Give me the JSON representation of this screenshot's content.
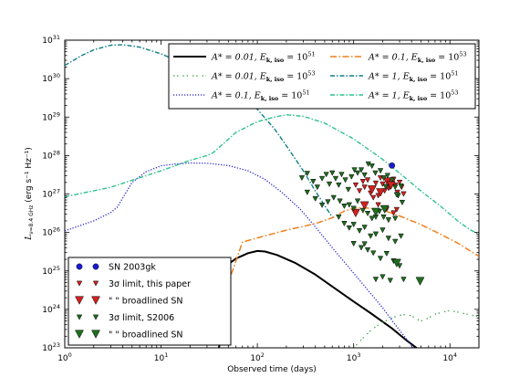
{
  "chart_data": {
    "type": "line",
    "xlabel": "Observed time (days)",
    "ylabel_main": "L",
    "ylabel_sub": "ν=8.4 GHz",
    "ylabel_unit": " (erg s⁻¹ Hz⁻¹)",
    "xscale": "log",
    "yscale": "log",
    "xlim": [
      1,
      20000
    ],
    "ylim": [
      1e+23,
      1e+31
    ],
    "x_ticks": [
      {
        "value": 1,
        "base": "10",
        "exp": "0"
      },
      {
        "value": 10,
        "base": "10",
        "exp": "1"
      },
      {
        "value": 100,
        "base": "10",
        "exp": "2"
      },
      {
        "value": 1000,
        "base": "10",
        "exp": "3"
      },
      {
        "value": 10000,
        "base": "10",
        "exp": "4"
      }
    ],
    "y_ticks": [
      {
        "value": 1e+23,
        "base": "10",
        "exp": "23"
      },
      {
        "value": 1e+24,
        "base": "10",
        "exp": "24"
      },
      {
        "value": 1e+25,
        "base": "10",
        "exp": "25"
      },
      {
        "value": 1e+26,
        "base": "10",
        "exp": "26"
      },
      {
        "value": 1e+27,
        "base": "10",
        "exp": "27"
      },
      {
        "value": 1e+28,
        "base": "10",
        "exp": "28"
      },
      {
        "value": 1e+29,
        "base": "10",
        "exp": "29"
      },
      {
        "value": 1e+30,
        "base": "10",
        "exp": "30"
      },
      {
        "value": 1e+31,
        "base": "10",
        "exp": "31"
      }
    ],
    "series": [
      {
        "name": "A* = 0.01, Ek,iso = 10^51",
        "legend_a": "A",
        "legend_astar": "* = 0.01,  E",
        "legend_ksub": "k, iso",
        "legend_eq": " = 10",
        "legend_exp": "51",
        "color": "#000000",
        "dash": "",
        "width": 2.0,
        "points": [
          [
            40,
            1e+23
          ],
          [
            50,
            1.5e+25
          ],
          [
            60,
            2.1e+25
          ],
          [
            80,
            2.9e+25
          ],
          [
            100,
            3.3e+25
          ],
          [
            120,
            3.2e+25
          ],
          [
            160,
            2.6e+25
          ],
          [
            250,
            1.6e+25
          ],
          [
            400,
            8e+24
          ],
          [
            700,
            3e+24
          ],
          [
            1000,
            1.6e+24
          ],
          [
            1500,
            8e+23
          ],
          [
            2500,
            3.2e+23
          ],
          [
            3500,
            1.6e+23
          ],
          [
            4500,
            1e+23
          ]
        ]
      },
      {
        "name": "A* = 0.01, Ek,iso = 10^53",
        "legend_a": "A",
        "legend_astar": "* = 0.01,  E",
        "legend_ksub": "k, iso",
        "legend_eq": " = 10",
        "legend_exp": "53",
        "color": "#3aa346",
        "dash": "1.5,2.5,1.5,5",
        "width": 1.2,
        "points": [
          [
            1000,
            1e+23
          ],
          [
            1300,
            2e+23
          ],
          [
            1600,
            3.2e+23
          ],
          [
            2000,
            4.6e+23
          ],
          [
            2500,
            6e+23
          ],
          [
            3000,
            7e+23
          ],
          [
            3500,
            7.4e+23
          ],
          [
            4000,
            6.8e+23
          ],
          [
            4500,
            5.5e+23
          ],
          [
            5200,
            5e+23
          ],
          [
            6000,
            6e+23
          ],
          [
            7000,
            7.5e+23
          ],
          [
            8500,
            8.5e+23
          ],
          [
            10000,
            9.3e+23
          ],
          [
            12000,
            8.5e+23
          ],
          [
            15000,
            7.5e+23
          ],
          [
            20000,
            6.5e+23
          ]
        ]
      },
      {
        "name": "A* = 0.1, Ek,iso = 10^51",
        "legend_a": "A",
        "legend_astar": "* = 0.1,  E",
        "legend_ksub": "k, iso",
        "legend_eq": " = 10",
        "legend_exp": "51",
        "color": "#2222cc",
        "dash": "1.2,1.8",
        "width": 1.3,
        "points": [
          [
            1,
            1.1e+26
          ],
          [
            2,
            2e+26
          ],
          [
            3,
            3.3e+26
          ],
          [
            3.5,
            4.5e+26
          ],
          [
            5,
            2e+27
          ],
          [
            7,
            3.8e+27
          ],
          [
            10,
            5.4e+27
          ],
          [
            14,
            6e+27
          ],
          [
            20,
            6.4e+27
          ],
          [
            30,
            6.3e+27
          ],
          [
            50,
            5.5e+27
          ],
          [
            80,
            4e+27
          ],
          [
            120,
            2.4e+27
          ],
          [
            180,
            1.1e+27
          ],
          [
            280,
            4e+26
          ],
          [
            400,
            1.4e+26
          ],
          [
            600,
            4e+25
          ],
          [
            900,
            1.2e+25
          ],
          [
            1400,
            3.2e+24
          ],
          [
            2000,
            1.1e+24
          ],
          [
            2700,
            4e+23
          ],
          [
            3600,
            1.6e+23
          ],
          [
            4200,
            1e+23
          ]
        ]
      },
      {
        "name": "A* = 0.1, Ek,iso = 10^53",
        "legend_a": "A",
        "legend_astar": "* = 0.1,  E",
        "legend_ksub": "k, iso",
        "legend_eq": " = 10",
        "legend_exp": "53",
        "color": "#f07f1b",
        "dash": "7,2.5,1.5,2.5",
        "width": 1.5,
        "points": [
          [
            40,
            1e+24
          ],
          [
            70,
            5.6e+25
          ],
          [
            100,
            7.2e+25
          ],
          [
            200,
            1.15e+26
          ],
          [
            400,
            1.7e+26
          ],
          [
            600,
            2.4e+26
          ],
          [
            800,
            3.6e+26
          ],
          [
            1000,
            4.3e+26
          ],
          [
            1300,
            4.4e+26
          ],
          [
            2000,
            3.8e+26
          ],
          [
            3000,
            2.7e+26
          ],
          [
            5000,
            1.6e+26
          ],
          [
            8000,
            9e+25
          ],
          [
            12000,
            5.3e+25
          ],
          [
            16000,
            3.4e+25
          ],
          [
            20000,
            2.4e+25
          ]
        ]
      },
      {
        "name": "A* = 1, Ek,iso = 10^51",
        "legend_a": "A",
        "legend_astar": "* = 1,  E",
        "legend_ksub": "k, iso",
        "legend_eq": " = 10",
        "legend_exp": "51",
        "color": "#0f7f86",
        "dash": "5,2,1.5,2",
        "width": 1.4,
        "points": [
          [
            1,
            2.2e+30
          ],
          [
            1.5,
            4e+30
          ],
          [
            2,
            5.6e+30
          ],
          [
            3,
            7.4e+30
          ],
          [
            4,
            7.6e+30
          ],
          [
            6,
            6.6e+30
          ],
          [
            10,
            4.4e+30
          ],
          [
            20,
            2.1e+30
          ],
          [
            40,
            8e+29
          ],
          [
            70,
            3.2e+29
          ],
          [
            100,
            1.6e+29
          ],
          [
            150,
            5e+28
          ],
          [
            200,
            1.8e+28
          ],
          [
            300,
            4e+27
          ],
          [
            400,
            1.2e+27
          ],
          [
            500,
            5e+26
          ],
          [
            600,
            2.5e+26
          ]
        ]
      },
      {
        "name": "A* = 1, Ek,iso = 10^53",
        "legend_a": "A",
        "legend_astar": "* = 1,  E",
        "legend_ksub": "k, iso",
        "legend_eq": " = 10",
        "legend_exp": "53",
        "color": "#2ec28a",
        "dash": "5,2,1.5,2",
        "width": 1.4,
        "points": [
          [
            1,
            8.5e+26
          ],
          [
            3,
            1.5e+27
          ],
          [
            10,
            4e+27
          ],
          [
            20,
            7.5e+27
          ],
          [
            30,
            1e+28
          ],
          [
            35,
            1.2e+28
          ],
          [
            45,
            2.1e+28
          ],
          [
            60,
            4e+28
          ],
          [
            100,
            7.6e+28
          ],
          [
            150,
            1e+29
          ],
          [
            200,
            1.15e+29
          ],
          [
            300,
            1.05e+29
          ],
          [
            500,
            7e+28
          ],
          [
            1000,
            2.7e+28
          ],
          [
            2000,
            8e+27
          ],
          [
            3000,
            3.5e+27
          ],
          [
            5000,
            1.2e+27
          ],
          [
            8000,
            4.8e+26
          ],
          [
            12000,
            2e+26
          ],
          [
            16000,
            1.2e+26
          ],
          [
            20000,
            9e+25
          ]
        ]
      }
    ],
    "scatter": [
      {
        "name": "SN 2003gk",
        "legend_label": "SN 2003gk",
        "marker": "circle",
        "color": "#1a1acc",
        "points": [
          [
            2500,
            5.5e+27
          ]
        ]
      },
      {
        "name": "3σ limit, this paper",
        "legend_label": "3σ limit, this paper",
        "marker": "tri-small",
        "color": "#d42020",
        "points": [
          [
            1050,
            1.7e+27
          ],
          [
            1150,
            1.2e+27
          ],
          [
            1250,
            2.1e+27
          ],
          [
            1300,
            1.5e+27
          ],
          [
            1400,
            2.3e+27
          ],
          [
            1500,
            1.05e+27
          ],
          [
            1600,
            1.4e+27
          ],
          [
            1700,
            1.9e+27
          ],
          [
            1800,
            9e+26
          ],
          [
            1900,
            2.6e+27
          ],
          [
            2000,
            1.8e+27
          ],
          [
            2100,
            1.2e+27
          ],
          [
            2200,
            2.2e+27
          ],
          [
            2300,
            1.4e+27
          ],
          [
            2400,
            1.5e+27
          ],
          [
            2600,
            2.4e+27
          ],
          [
            2700,
            1.7e+27
          ],
          [
            2850,
            1.1e+27
          ],
          [
            3000,
            2e+27
          ],
          [
            3150,
            1.5e+27
          ],
          [
            3300,
            1e+27
          ],
          [
            2200,
            4e+26
          ],
          [
            2600,
            3.2e+26
          ],
          [
            2800,
            3.9e+26
          ],
          [
            1800,
            5.2e+26
          ],
          [
            1600,
            8e+26
          ]
        ]
      },
      {
        "name": "\" \"broadlined SN",
        "legend_quotes": "\"   \"",
        "legend_label": "broadlined SN",
        "marker": "tri-big",
        "color": "#d42020",
        "points": [
          [
            1900,
            1.1e+27
          ],
          [
            2250,
            2.1e+27
          ],
          [
            2450,
            1.7e+27
          ],
          [
            1300,
            5e+26
          ],
          [
            1050,
            3.2e+26
          ],
          [
            1550,
            1.3e+27
          ]
        ]
      },
      {
        "name": "3σ limit, S2006",
        "legend_label": "3σ limit, S2006",
        "marker": "tri-small",
        "color": "#1f6e1f",
        "points": [
          [
            290,
            2.6e+27
          ],
          [
            330,
            3.4e+27
          ],
          [
            380,
            2.1e+27
          ],
          [
            420,
            1.5e+27
          ],
          [
            470,
            2.5e+27
          ],
          [
            520,
            3.2e+27
          ],
          [
            560,
            1.8e+27
          ],
          [
            600,
            3.5e+27
          ],
          [
            650,
            2.5e+27
          ],
          [
            700,
            1.7e+27
          ],
          [
            750,
            3.2e+27
          ],
          [
            820,
            2.3e+27
          ],
          [
            880,
            1.3e+27
          ],
          [
            950,
            2.8e+27
          ],
          [
            1020,
            4.2e+27
          ],
          [
            1100,
            3.5e+27
          ],
          [
            1200,
            4.2e+27
          ],
          [
            1300,
            3.1e+27
          ],
          [
            1420,
            6e+27
          ],
          [
            1550,
            5.3e+27
          ],
          [
            1680,
            3.5e+27
          ],
          [
            1900,
            4e+27
          ],
          [
            2050,
            2.6e+27
          ],
          [
            2250,
            3e+27
          ],
          [
            2500,
            2.3e+27
          ],
          [
            2700,
            1.5e+27
          ],
          [
            2900,
            9e+26
          ],
          [
            3100,
            1.6e+27
          ],
          [
            330,
            1.1e+27
          ],
          [
            400,
            7.5e+26
          ],
          [
            470,
            5.1e+26
          ],
          [
            540,
            6.2e+26
          ],
          [
            620,
            8e+26
          ],
          [
            720,
            6.5e+26
          ],
          [
            800,
            4.8e+26
          ],
          [
            900,
            5.2e+26
          ],
          [
            1000,
            4.2e+26
          ],
          [
            1100,
            6.5e+26
          ],
          [
            1250,
            3.7e+26
          ],
          [
            1400,
            3.1e+26
          ],
          [
            1550,
            2.3e+26
          ],
          [
            1700,
            2.5e+26
          ],
          [
            1850,
            3.5e+26
          ],
          [
            2050,
            2.5e+26
          ],
          [
            2300,
            2.1e+26
          ],
          [
            2700,
            2.3e+26
          ],
          [
            700,
            2.5e+26
          ],
          [
            800,
            1.7e+26
          ],
          [
            900,
            1.3e+26
          ],
          [
            1000,
            1.6e+26
          ],
          [
            1150,
            1.1e+26
          ],
          [
            1300,
            1.35e+26
          ],
          [
            1500,
            8e+25
          ],
          [
            1700,
            9e+25
          ],
          [
            2000,
            1.15e+26
          ],
          [
            2300,
            7e+25
          ],
          [
            2700,
            5.8e+25
          ],
          [
            3100,
            8e+25
          ],
          [
            1000,
            5.1e+25
          ],
          [
            1200,
            4e+25
          ],
          [
            1400,
            3.5e+25
          ],
          [
            1600,
            2.9e+25
          ],
          [
            1900,
            2.1e+25
          ],
          [
            2200,
            2.8e+25
          ],
          [
            2600,
            1.8e+25
          ],
          [
            3000,
            1.35e+25
          ],
          [
            2000,
            7e+24
          ],
          [
            2400,
            5.6e+24
          ],
          [
            1700,
            6e+24
          ],
          [
            3300,
            6e+24
          ],
          [
            1300,
            5e+25
          ],
          [
            2800,
            9.5e+26
          ],
          [
            3200,
            6e+26
          ],
          [
            2150,
            1.55e+27
          ]
        ]
      },
      {
        "name": "\" \"broadlined SN (S2006)",
        "legend_quotes": "\"   \"",
        "legend_label": "broadlined SN",
        "marker": "tri-big",
        "color": "#1f6e1f",
        "points": [
          [
            1700,
            3.4e+26
          ],
          [
            2100,
            4e+26
          ],
          [
            4900,
            5.4e+24
          ],
          [
            2800,
            1.6e+25
          ]
        ]
      }
    ],
    "legend_top_position": "top-right",
    "legend_scatter_position": "bottom-left",
    "grid": false
  }
}
